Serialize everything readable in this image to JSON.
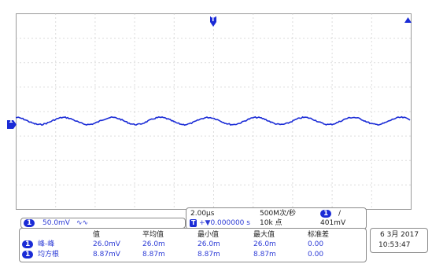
{
  "colors": {
    "trace": "#1a2bd6",
    "grid": "#b9b9b9",
    "border": "#8a8a8a",
    "text": "#2c3bd6"
  },
  "markers": {
    "trigger_position": "T",
    "channel_level": "1",
    "trigger_level_arrow": "arrow-icon"
  },
  "channel_box": {
    "channel": "1",
    "scale": "50.0mV",
    "coupling_icon": "bandwidth-limit-icon",
    "coupling_symbol": "∿∿"
  },
  "timebase_box": {
    "time_per_div": "2.00µs",
    "trigger_icon": "T",
    "trigger_delay": "+▼0.000000 s",
    "sample_rate": "500M次/秒",
    "record_length": "10k 点",
    "trigger_channel": "1",
    "trigger_slope": "/",
    "trigger_level": "401mV"
  },
  "measurements": {
    "headers": [
      "值",
      "平均值",
      "最小值",
      "最大值",
      "标准差"
    ],
    "rows": [
      {
        "channel": "1",
        "name": "峰-峰",
        "values": [
          "26.0mV",
          "26.0m",
          "26.0m",
          "26.0m",
          "0.00"
        ]
      },
      {
        "channel": "1",
        "name": "均方根",
        "values": [
          "8.87mV",
          "8.87m",
          "8.87m",
          "8.87m",
          "0.00"
        ]
      }
    ]
  },
  "datetime": {
    "date": "6 3月 2017",
    "time": "10:53:47"
  }
}
